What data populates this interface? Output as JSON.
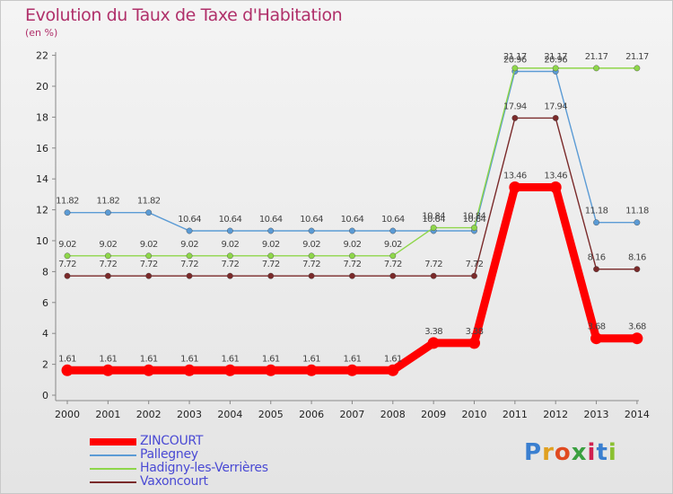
{
  "header": {
    "title": "Evolution du Taux de Taxe d'Habitation",
    "unit": "(en %)"
  },
  "chart_data": {
    "type": "line",
    "title": "Evolution du Taux de Taxe d'Habitation",
    "ylabel": "(en %)",
    "xlabel": "",
    "x": [
      "2000",
      "2001",
      "2002",
      "2003",
      "2004",
      "2005",
      "2006",
      "2007",
      "2008",
      "2009",
      "2010",
      "2011",
      "2012",
      "2013",
      "2014"
    ],
    "ylim": [
      0,
      22
    ],
    "yticks": [
      0,
      2,
      4,
      6,
      8,
      10,
      12,
      14,
      16,
      18,
      20,
      22
    ],
    "grid": false,
    "series": [
      {
        "name": "ZINCOURT",
        "color": "#ff0000",
        "values": [
          1.61,
          1.61,
          1.61,
          1.61,
          1.61,
          1.61,
          1.61,
          1.61,
          1.61,
          3.38,
          3.38,
          13.46,
          13.46,
          3.68,
          3.68
        ]
      },
      {
        "name": "Pallegney",
        "color": "#5b9bd5",
        "values": [
          11.82,
          11.82,
          11.82,
          10.64,
          10.64,
          10.64,
          10.64,
          10.64,
          10.64,
          10.64,
          10.64,
          20.96,
          20.96,
          11.18,
          11.18
        ]
      },
      {
        "name": "Hadigny-les-Verrières",
        "color": "#8ed64a",
        "values": [
          9.02,
          9.02,
          9.02,
          9.02,
          9.02,
          9.02,
          9.02,
          9.02,
          9.02,
          10.84,
          10.84,
          21.17,
          21.17,
          21.17,
          21.17
        ]
      },
      {
        "name": "Vaxoncourt",
        "color": "#7a2a2a",
        "values": [
          7.72,
          7.72,
          7.72,
          7.72,
          7.72,
          7.72,
          7.72,
          7.72,
          7.72,
          7.72,
          7.72,
          17.94,
          17.94,
          8.16,
          8.16
        ]
      }
    ]
  },
  "legend": [
    "ZINCOURT",
    "Pallegney",
    "Hadigny-les-Verrières",
    "Vaxoncourt"
  ],
  "logo": {
    "letters": [
      "P",
      "r",
      "o",
      "x",
      "i",
      "t",
      "i"
    ],
    "colors": [
      "#3a7fd0",
      "#e0a020",
      "#e04a20",
      "#3aa040",
      "#d02050",
      "#3a7fd0",
      "#8ac030"
    ]
  }
}
